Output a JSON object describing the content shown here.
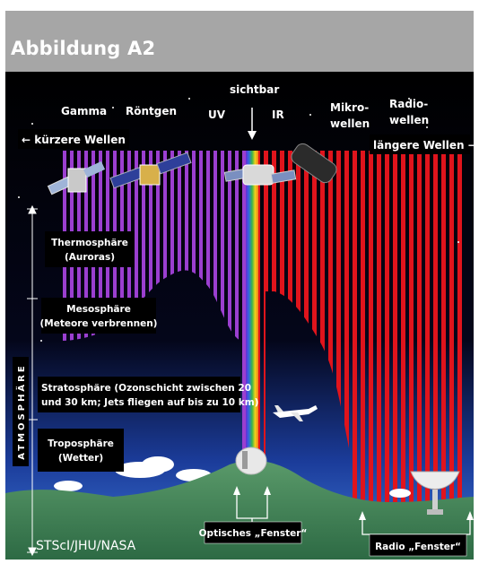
{
  "header": {
    "title": "Abbildung A2"
  },
  "spectrum": {
    "gamma": "Gamma",
    "roentgen": "Röntgen",
    "uv": "UV",
    "sichtbar": "sichtbar",
    "ir": "IR",
    "mikro_1": "Mikro-",
    "mikro_2": "wellen",
    "radio_1": "Radio-",
    "radio_2": "wellen",
    "shorter": "← kürzere Wellen",
    "longer": "längere Wellen →"
  },
  "layers": {
    "thermo_1": "Thermosphäre",
    "thermo_2": "(Auroras)",
    "meso_1": "Mesosphäre",
    "meso_2": "(Meteore verbrennen)",
    "strato_1": "Stratosphäre (Ozonschicht zwischen 20",
    "strato_2": "und 30 km; Jets fliegen auf bis zu 10 km)",
    "tropo_1": "Troposphäre",
    "tropo_2": "(Wetter)",
    "atmosphere": "ATMOSPHÄRE"
  },
  "windows": {
    "optical": "Optisches „Fenster“",
    "radio": "Radio „Fenster“"
  },
  "credit": "STScI/JHU/NASA",
  "colors": {
    "violet": "#9b3fd0",
    "red": "#e0141c",
    "header_bg": "#a6a6a6"
  }
}
